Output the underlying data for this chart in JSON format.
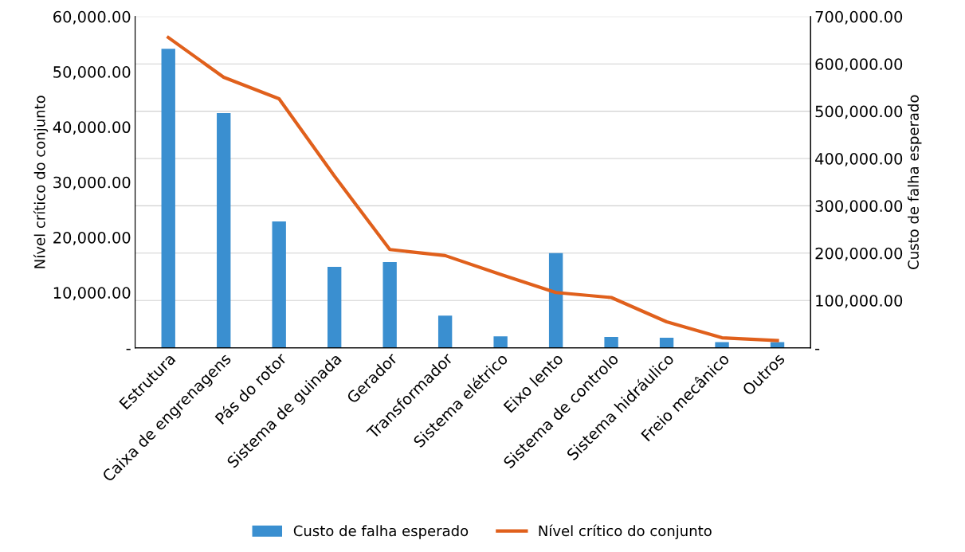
{
  "chart_data": {
    "type": "bar",
    "ylabel": "Nível crítico do conjunto",
    "y2label": "Custo de falha esperado",
    "categories": [
      "Estrutura",
      "Caixa de engrenagens",
      "Pás do rotor",
      "Sistema de guinada",
      "Gerador",
      "Transformador",
      "Sistema elétrico",
      "Eixo lento",
      "Sistema de controlo",
      "Sistema hidráulico",
      "Freio mecânico",
      "Outros"
    ],
    "series": [
      {
        "name": "Custo de falha esperado",
        "axis": "y2",
        "color": "#3a8fd0",
        "values": [
          632000,
          496000,
          267000,
          171000,
          181000,
          68000,
          24000,
          200000,
          23000,
          21000,
          12000,
          12000
        ]
      },
      {
        "name": "Nível crítico do conjunto",
        "type": "line",
        "axis": "y",
        "color": "#e0601c",
        "values": [
          56200,
          49000,
          45100,
          31100,
          17800,
          16700,
          13300,
          10000,
          9100,
          4700,
          1800,
          1300
        ]
      }
    ],
    "ylim": [
      0,
      60000
    ],
    "yticks": [
      {
        "value": 0,
        "label": "-"
      },
      {
        "value": 10000,
        "label": "10,000.00"
      },
      {
        "value": 20000,
        "label": "20,000.00"
      },
      {
        "value": 30000,
        "label": "30,000.00"
      },
      {
        "value": 40000,
        "label": "40,000.00"
      },
      {
        "value": 50000,
        "label": "50,000.00"
      },
      {
        "value": 60000,
        "label": "60,000.00"
      }
    ],
    "y2lim": [
      0,
      700000
    ],
    "y2ticks": [
      {
        "value": 0,
        "label": "-"
      },
      {
        "value": 100000,
        "label": "100,000.00"
      },
      {
        "value": 200000,
        "label": "200,000.00"
      },
      {
        "value": 300000,
        "label": "300,000.00"
      },
      {
        "value": 400000,
        "label": "400,000.00"
      },
      {
        "value": 500000,
        "label": "500,000.00"
      },
      {
        "value": 600000,
        "label": "600,000.00"
      },
      {
        "value": 700000,
        "label": "700,000.00"
      }
    ],
    "grid": "y",
    "legend": "bottom",
    "marker": "none",
    "line_style": "solid"
  }
}
